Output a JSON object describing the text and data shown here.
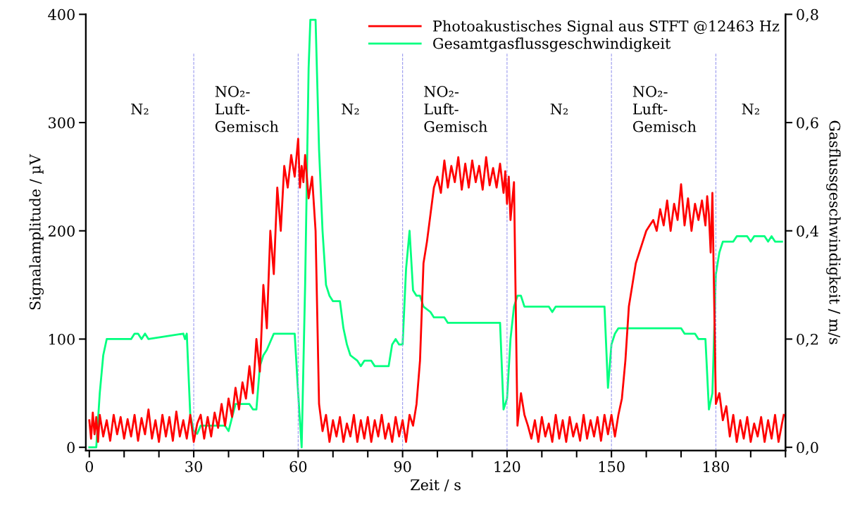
{
  "chart_data": {
    "type": "line",
    "xlabel": "Zeit / s",
    "ylabel": "Signalamplitude / µV",
    "y2label": "Gasflussgeschwindigkeit / m/s",
    "xlim": [
      -1,
      200
    ],
    "xticks": [
      0,
      {
        "value": 10,
        "label": null
      },
      {
        "value": 20,
        "label": null
      },
      30,
      {
        "value": 40,
        "label": null
      },
      {
        "value": 50,
        "label": null
      },
      60,
      {
        "value": 70,
        "label": null
      },
      {
        "value": 80,
        "label": null
      },
      90,
      {
        "value": 100,
        "label": null
      },
      {
        "value": 110,
        "label": null
      },
      120,
      {
        "value": 130,
        "label": null
      },
      {
        "value": 140,
        "label": null
      },
      150,
      {
        "value": 160,
        "label": null
      },
      {
        "value": 170,
        "label": null
      },
      180,
      {
        "value": 190,
        "label": null
      },
      {
        "value": 200,
        "label": null
      }
    ],
    "ylim": [
      -3,
      400
    ],
    "yticks": [
      0,
      100,
      200,
      300,
      400
    ],
    "y2lim": [
      -0.006,
      0.8
    ],
    "y2ticks": [
      {
        "value": 0,
        "label": "0,0"
      },
      {
        "value": 0.2,
        "label": "0,2"
      },
      {
        "value": 0.4,
        "label": "0,4"
      },
      {
        "value": 0.6,
        "label": "0,6"
      },
      {
        "value": 0.8,
        "label": "0,8"
      }
    ],
    "legend": "top right",
    "grid": false,
    "ref_lines": [
      {
        "axis": "x",
        "value": 30,
        "color": "#9999ee",
        "line_style": "dashed"
      },
      {
        "axis": "x",
        "value": 60,
        "color": "#9999ee",
        "line_style": "dashed"
      },
      {
        "axis": "x",
        "value": 90,
        "color": "#9999ee",
        "line_style": "dashed"
      },
      {
        "axis": "x",
        "value": 120,
        "color": "#9999ee",
        "line_style": "dashed"
      },
      {
        "axis": "x",
        "value": 150,
        "color": "#9999ee",
        "line_style": "dashed"
      },
      {
        "axis": "x",
        "value": 180,
        "color": "#9999ee",
        "line_style": "dashed"
      }
    ],
    "annotations": [
      "N₂",
      "NO₂-\nLuft-\nGemisch",
      "N₂",
      "NO₂-\nLuft-\nGemisch",
      "N₂",
      "NO₂-\nLuft-\nGemisch",
      "N₂"
    ],
    "series": [
      {
        "name": "Photoakustisches Signal aus STFT @12463 Hz",
        "color": "#ff0000",
        "x": [
          0,
          0.5,
          1,
          1.5,
          2,
          2.5,
          3,
          4,
          5,
          6,
          7,
          8,
          9,
          10,
          11,
          12,
          13,
          14,
          15,
          16,
          17,
          18,
          19,
          20,
          21,
          22,
          23,
          24,
          25,
          26,
          27,
          28,
          29,
          30,
          31,
          32,
          33,
          34,
          35,
          36,
          37,
          38,
          39,
          40,
          41,
          42,
          43,
          44,
          45,
          46,
          47,
          48,
          49,
          50,
          51,
          52,
          53,
          54,
          55,
          56,
          57,
          58,
          59,
          60,
          60.5,
          61,
          61.5,
          62,
          63,
          64,
          65,
          66,
          67,
          68,
          69,
          70,
          71,
          72,
          73,
          74,
          75,
          76,
          77,
          78,
          79,
          80,
          81,
          82,
          83,
          84,
          85,
          86,
          87,
          88,
          89,
          90,
          91,
          92,
          93,
          94,
          95,
          96,
          97,
          98,
          99,
          100,
          101,
          102,
          103,
          104,
          105,
          106,
          107,
          108,
          109,
          110,
          111,
          112,
          113,
          114,
          115,
          116,
          117,
          118,
          119,
          119.5,
          120,
          120.5,
          121,
          122,
          123,
          124,
          125,
          126,
          127,
          128,
          129,
          130,
          131,
          132,
          133,
          134,
          135,
          136,
          137,
          138,
          139,
          140,
          141,
          142,
          143,
          144,
          145,
          146,
          147,
          148,
          149,
          150,
          151,
          152,
          153,
          154,
          155,
          156,
          157,
          158,
          159,
          160,
          161,
          162,
          163,
          164,
          165,
          166,
          167,
          168,
          169,
          170,
          171,
          172,
          173,
          174,
          175,
          176,
          177,
          177.5,
          178,
          178.5,
          179,
          180,
          181,
          182,
          183,
          184,
          185,
          186,
          187,
          188,
          189,
          190,
          191,
          192,
          193,
          194,
          195,
          196,
          197,
          198,
          199,
          199.5
        ],
        "values": [
          25,
          8,
          32,
          12,
          28,
          5,
          30,
          10,
          25,
          6,
          30,
          12,
          28,
          8,
          26,
          10,
          30,
          6,
          27,
          12,
          35,
          8,
          25,
          5,
          30,
          10,
          28,
          6,
          33,
          10,
          25,
          8,
          30,
          5,
          22,
          30,
          8,
          28,
          10,
          32,
          18,
          40,
          20,
          45,
          28,
          55,
          35,
          60,
          45,
          75,
          50,
          100,
          70,
          150,
          110,
          200,
          160,
          240,
          200,
          260,
          240,
          270,
          250,
          285,
          240,
          260,
          245,
          270,
          230,
          250,
          200,
          40,
          15,
          30,
          5,
          25,
          10,
          28,
          5,
          22,
          10,
          30,
          5,
          25,
          8,
          28,
          5,
          25,
          10,
          30,
          8,
          22,
          5,
          28,
          10,
          25,
          5,
          30,
          20,
          40,
          80,
          170,
          190,
          215,
          240,
          250,
          235,
          265,
          240,
          260,
          245,
          268,
          238,
          262,
          240,
          265,
          245,
          260,
          238,
          268,
          242,
          258,
          240,
          262,
          235,
          255,
          225,
          250,
          210,
          245,
          20,
          50,
          30,
          20,
          8,
          25,
          5,
          28,
          10,
          22,
          5,
          30,
          8,
          25,
          5,
          28,
          10,
          22,
          6,
          30,
          8,
          25,
          10,
          28,
          6,
          30,
          12,
          30,
          10,
          30,
          45,
          80,
          130,
          150,
          170,
          180,
          190,
          200,
          205,
          210,
          200,
          220,
          205,
          228,
          200,
          225,
          210,
          243,
          205,
          230,
          200,
          225,
          210,
          228,
          205,
          232,
          215,
          180,
          235,
          40,
          50,
          25,
          38,
          10,
          30,
          5,
          25,
          8,
          28,
          5,
          22,
          10,
          28,
          5,
          25,
          8,
          30,
          5,
          22,
          30
        ]
      },
      {
        "name": "Gesamtgasflussgeschwindigkeit",
        "color": "#00ff7f",
        "axis": "y2",
        "x": [
          0,
          2,
          3,
          4,
          5,
          12,
          13,
          14,
          15,
          16,
          17,
          27,
          27.5,
          28,
          29,
          30,
          31,
          32,
          39,
          40,
          42,
          46,
          47,
          48,
          49,
          50,
          51,
          53,
          59,
          60,
          61,
          62,
          63,
          63.5,
          65,
          66,
          67,
          68,
          69,
          70,
          72,
          73,
          74,
          75,
          77,
          78,
          79,
          81,
          82,
          84,
          86,
          87,
          88,
          89,
          90,
          91,
          92,
          93,
          94,
          95,
          96,
          98,
          99,
          102,
          103,
          118,
          119,
          120,
          121,
          122,
          123,
          124,
          125,
          132,
          133,
          134,
          148,
          149,
          150,
          151,
          152,
          170,
          171,
          174,
          175,
          177,
          178,
          179,
          180,
          181,
          182,
          185,
          186,
          189,
          190,
          191,
          194,
          195,
          196,
          197,
          199
        ],
        "values": [
          0,
          0,
          0.1,
          0.17,
          0.2,
          0.2,
          0.21,
          0.21,
          0.2,
          0.21,
          0.2,
          0.21,
          0.2,
          0.21,
          0.06,
          0.03,
          0.025,
          0.04,
          0.04,
          0.03,
          0.08,
          0.08,
          0.07,
          0.07,
          0.15,
          0.17,
          0.18,
          0.21,
          0.21,
          0.1,
          0.0,
          0.3,
          0.7,
          0.79,
          0.79,
          0.55,
          0.4,
          0.3,
          0.28,
          0.27,
          0.27,
          0.22,
          0.19,
          0.17,
          0.16,
          0.15,
          0.16,
          0.16,
          0.15,
          0.15,
          0.15,
          0.19,
          0.2,
          0.19,
          0.19,
          0.33,
          0.4,
          0.29,
          0.28,
          0.28,
          0.26,
          0.25,
          0.24,
          0.24,
          0.23,
          0.23,
          0.07,
          0.09,
          0.2,
          0.26,
          0.28,
          0.28,
          0.26,
          0.26,
          0.25,
          0.26,
          0.26,
          0.11,
          0.19,
          0.21,
          0.22,
          0.22,
          0.21,
          0.21,
          0.2,
          0.2,
          0.07,
          0.1,
          0.32,
          0.36,
          0.38,
          0.38,
          0.39,
          0.39,
          0.38,
          0.39,
          0.39,
          0.38,
          0.39,
          0.38,
          0.38
        ]
      }
    ]
  }
}
